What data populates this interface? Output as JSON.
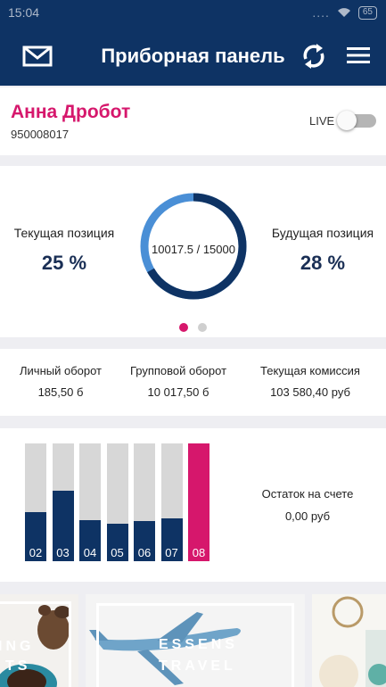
{
  "status_bar": {
    "time": "15:04",
    "signal_dots": "....",
    "battery": "65"
  },
  "app_bar": {
    "title": "Приборная панель",
    "icons": [
      "mail-icon",
      "refresh-icon",
      "hamburger-menu-icon"
    ]
  },
  "profile": {
    "name": "Анна Дробот",
    "id": "950008017",
    "live_label": "LIVE",
    "live_on": false
  },
  "positions": {
    "current_label": "Текущая позиция",
    "current_value": "25 %",
    "future_label": "Будущая позиция",
    "future_value": "28 %",
    "progress_text": "10017.5 / 15000",
    "progress_value": 10017.5,
    "progress_max": 15000,
    "pages": 2,
    "active_page": 0
  },
  "stats": [
    {
      "label": "Личный оборот",
      "value": "185,50 б"
    },
    {
      "label": "Групповой оборот",
      "value": "10 017,50 б"
    },
    {
      "label": "Текущая комиссия",
      "value": "103 580,40 руб"
    }
  ],
  "chart_data": {
    "type": "bar",
    "categories": [
      "02",
      "03",
      "04",
      "05",
      "06",
      "07",
      "08"
    ],
    "values": [
      0.42,
      0.6,
      0.35,
      0.32,
      0.34,
      0.36,
      1.0
    ],
    "highlight_index": 6,
    "colors": {
      "fill": "#0e3364",
      "track": "#d7d7d7",
      "highlight": "#d6176c"
    }
  },
  "balance": {
    "label": "Остаток на счете",
    "value": "0,00 руб"
  },
  "banners": [
    {
      "text_line1": "ING",
      "text_line2": "TS"
    },
    {
      "text_line1": "ESSENS",
      "text_line2": "TRAVEL"
    },
    {
      "text_line1": "",
      "text_line2": ""
    }
  ],
  "colors": {
    "primary": "#0e3364",
    "accent": "#d6176c",
    "ring_light": "#4a8fd6"
  }
}
